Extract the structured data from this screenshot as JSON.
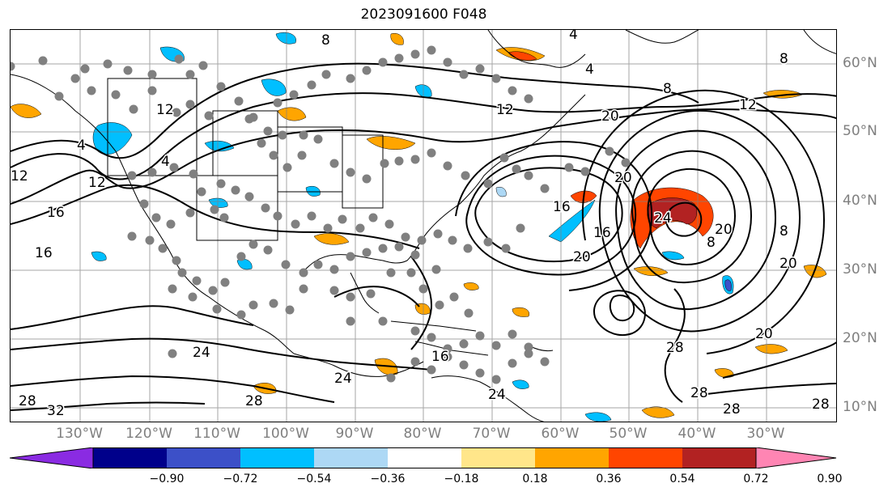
{
  "title": "2023091600 F048",
  "lat_labels": [
    "60°N",
    "50°N",
    "40°N",
    "30°N",
    "20°N",
    "10°N"
  ],
  "lon_labels": [
    "130°W",
    "120°W",
    "110°W",
    "100°W",
    "90°W",
    "80°W",
    "70°W",
    "60°W",
    "50°W",
    "40°W",
    "30°W"
  ],
  "colorbar": {
    "tick_labels": [
      "−0.90",
      "−0.72",
      "−0.54",
      "−0.36",
      "−0.18",
      "0.18",
      "0.36",
      "0.54",
      "0.72",
      "0.90"
    ],
    "colors": [
      "#8a2be2",
      "#00008b",
      "#3c50c8",
      "#00bfff",
      "#add8f5",
      "#ffffff",
      "#ffe68a",
      "#ffa500",
      "#ff4500",
      "#b22222",
      "#ff85b3"
    ]
  },
  "contour_labels": [
    "8",
    "4",
    "4",
    "8",
    "12",
    "20",
    "4",
    "4",
    "12",
    "12",
    "12",
    "16",
    "16",
    "20",
    "24",
    "24",
    "28",
    "28",
    "32",
    "16",
    "16",
    "24",
    "20",
    "20",
    "28",
    "28",
    "28",
    "12",
    "16",
    "20",
    "8",
    "8",
    "20",
    "24",
    "28",
    "8"
  ],
  "legend_colors": {
    "positive_low": "#ffe68a",
    "positive_mid": "#ffa500",
    "positive_high": "#ff4500",
    "positive_top": "#b22222",
    "negative_low": "#add8f5",
    "negative_mid": "#00bfff",
    "negative_high": "#3c50c8",
    "station_dot": "#808080",
    "contour": "#000000",
    "grid": "#808080"
  }
}
